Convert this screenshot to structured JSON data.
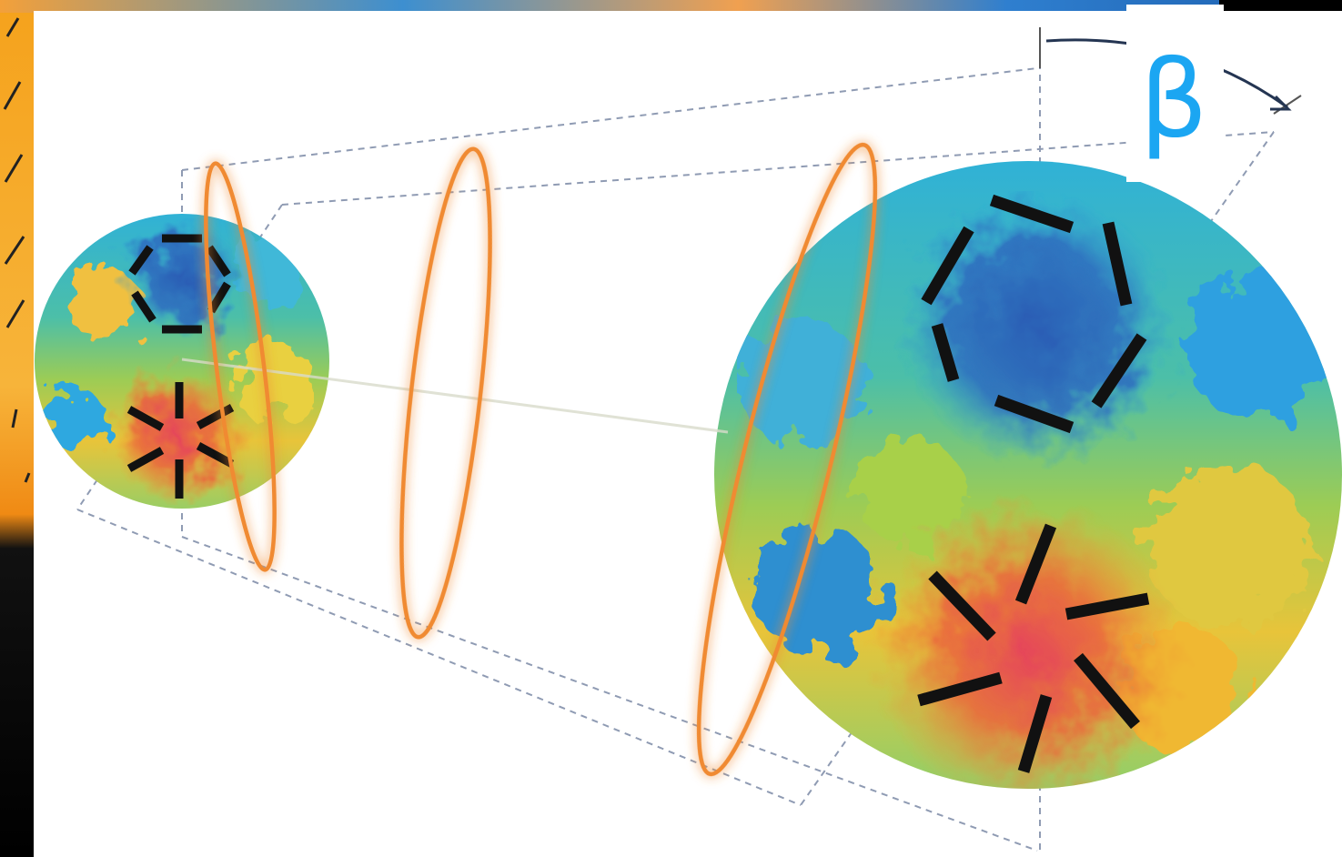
{
  "annotations": {
    "angle_label": "β"
  }
}
